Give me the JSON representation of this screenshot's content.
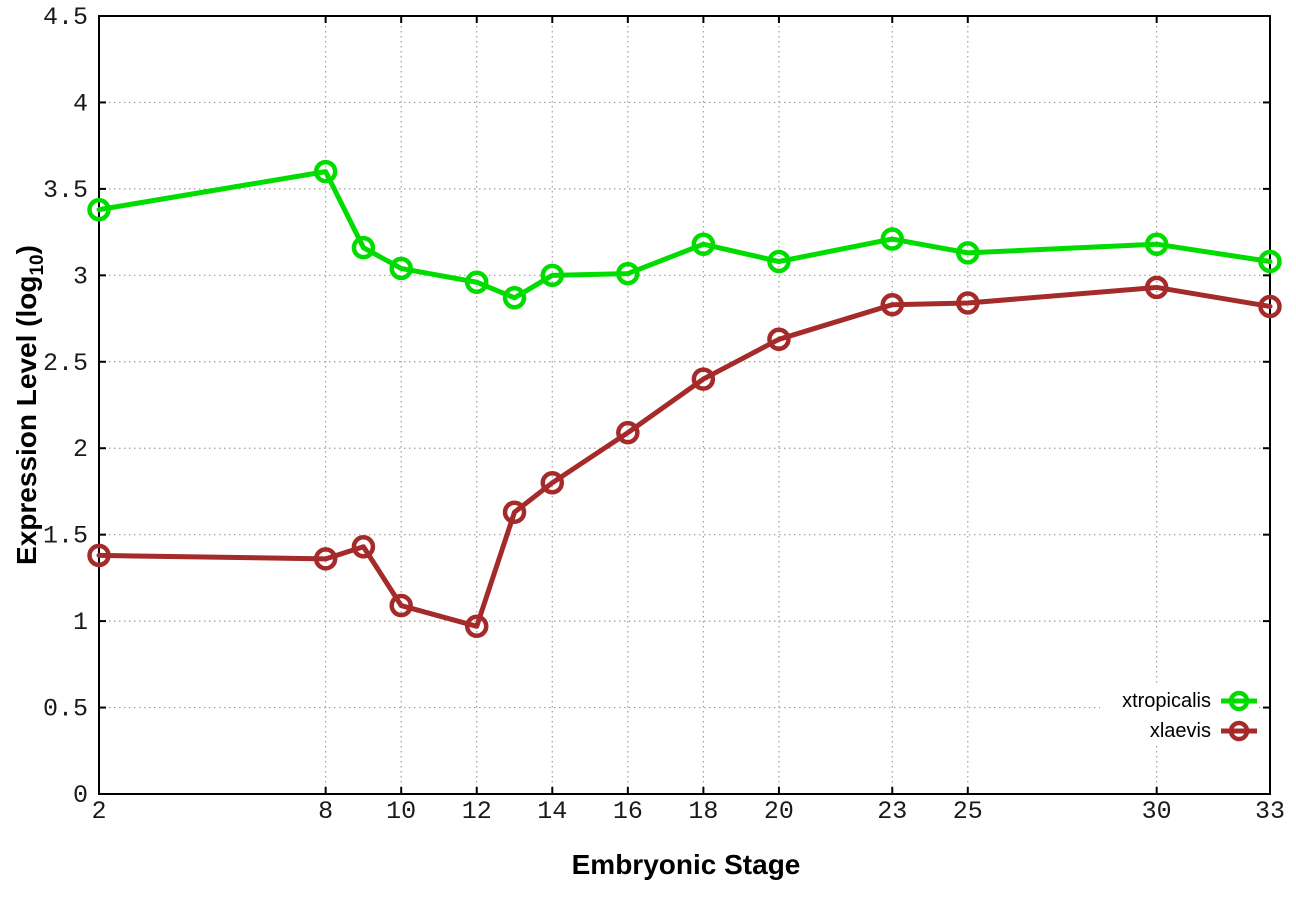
{
  "figure": {
    "title": "",
    "xlabel": "Embryonic Stage",
    "ylabel": {
      "pre": "Expression Level (log",
      "sub": "10",
      "post": ")"
    }
  },
  "chart_data": {
    "type": "line",
    "x": [
      2,
      8,
      9,
      10,
      12,
      13,
      14,
      16,
      18,
      20,
      23,
      25,
      30,
      33
    ],
    "series": [
      {
        "name": "xtropicalis",
        "color": "#00dc00",
        "marker": "open-circle",
        "values": [
          3.38,
          3.6,
          3.16,
          3.04,
          2.96,
          2.87,
          3.0,
          3.01,
          3.18,
          3.08,
          3.21,
          3.13,
          3.18,
          3.08
        ]
      },
      {
        "name": "xlaevis",
        "color": "#a52a2a",
        "marker": "open-circle",
        "values": [
          1.38,
          1.36,
          1.43,
          1.09,
          0.97,
          1.63,
          1.8,
          2.09,
          2.4,
          2.63,
          2.83,
          2.84,
          2.93,
          2.82
        ]
      }
    ],
    "xlabel": "Embryonic Stage",
    "ylabel": "Expression Level (log10)",
    "xlim": [
      2,
      33
    ],
    "ylim": [
      0,
      4.5
    ],
    "xticks": [
      2,
      8,
      10,
      12,
      14,
      16,
      18,
      20,
      23,
      25,
      30,
      33
    ],
    "yticks": [
      0,
      0.5,
      1,
      1.5,
      2,
      2.5,
      3,
      3.5,
      4,
      4.5
    ],
    "grid": true,
    "grid_style": "dotted",
    "legend_position": "bottom-right"
  },
  "colors": {
    "grid": "#9e9e9e",
    "axis": "#000000",
    "tick_text": "#1a1a1a",
    "background": "#ffffff"
  }
}
